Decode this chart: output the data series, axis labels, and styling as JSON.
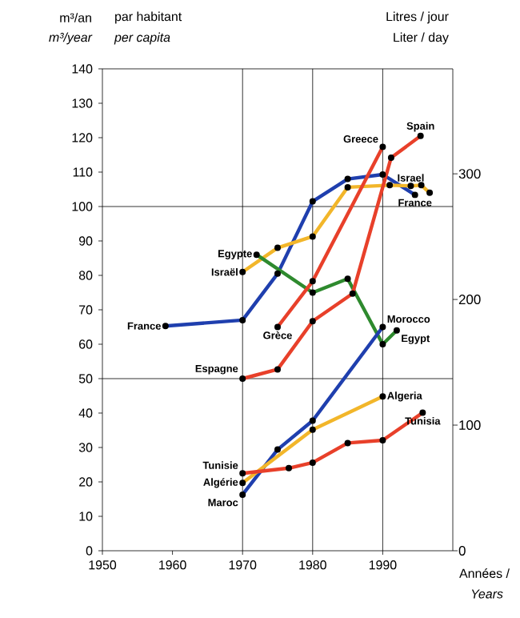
{
  "chart_data": {
    "type": "line",
    "ylabel": "m³/an",
    "y2label": "Litres / jour",
    "xlabel": "Années /",
    "xlim": [
      1950,
      2000
    ],
    "xticks": [
      1950,
      1960,
      1970,
      1980,
      1990
    ],
    "ylim": [
      0,
      140
    ],
    "yticks": [
      0,
      10,
      20,
      30,
      40,
      50,
      60,
      70,
      80,
      90,
      100,
      110,
      120,
      130,
      140
    ],
    "y2lim": [
      0,
      383.56
    ],
    "y2ticks": [
      0,
      100,
      200,
      300
    ],
    "marker": "circle",
    "grid": false,
    "ref_lines": [
      {
        "axis": "x",
        "value": 1970
      },
      {
        "axis": "x",
        "value": 1980
      },
      {
        "axis": "x",
        "value": 1990
      },
      {
        "axis": "y",
        "value": 50
      },
      {
        "axis": "y",
        "value": 100
      }
    ],
    "series": [
      {
        "color": "#1f3fae",
        "x": [
          1959,
          1970,
          1975,
          1980,
          1985,
          1990,
          1994.6
        ],
        "values": [
          65.3,
          67,
          80.5,
          101.5,
          108,
          109.3,
          103.4
        ]
      },
      {
        "color": "#f2b62a",
        "x": [
          1970,
          1975,
          1980,
          1985,
          1991,
          1994,
          1995.5,
          1996.7
        ],
        "values": [
          81,
          88,
          91.3,
          105.6,
          106.2,
          106,
          106.2,
          104
        ]
      },
      {
        "color": "#2e8a2e",
        "x": [
          1972,
          1980,
          1985,
          1990,
          1992
        ],
        "values": [
          86,
          75,
          79,
          60,
          64
        ]
      },
      {
        "color": "#e8402a",
        "x": [
          1975,
          1980,
          1990
        ],
        "values": [
          65,
          78.3,
          117.3
        ]
      },
      {
        "color": "#e8402a",
        "x": [
          1970,
          1975,
          1980,
          1985.7,
          1991.2,
          1995.4
        ],
        "values": [
          50,
          52.7,
          66.7,
          74.7,
          114.2,
          120.5
        ]
      },
      {
        "color": "#1f3fae",
        "x": [
          1970,
          1975,
          1980,
          1990
        ],
        "values": [
          16.3,
          29.4,
          37.8,
          65
        ]
      },
      {
        "color": "#f2b62a",
        "x": [
          1970,
          1980,
          1990
        ],
        "values": [
          19.7,
          35.2,
          44.8
        ]
      },
      {
        "color": "#e8402a",
        "x": [
          1970,
          1976.6,
          1980,
          1985,
          1990,
          1995.7
        ],
        "values": [
          22.5,
          24,
          25.6,
          31.3,
          32.1,
          40.1
        ]
      }
    ],
    "annotations": [
      {
        "text": "France",
        "x": 1959,
        "y": 65.3
      },
      {
        "text": "Israël",
        "x": 1970,
        "y": 81
      },
      {
        "text": "Egypte",
        "x": 1972,
        "y": 86
      },
      {
        "text": "Grèce",
        "x": 1975,
        "y": 65
      },
      {
        "text": "Espagne",
        "x": 1970,
        "y": 50
      },
      {
        "text": "Tunisie",
        "x": 1970,
        "y": 22.5
      },
      {
        "text": "Algérie",
        "x": 1970,
        "y": 19.7
      },
      {
        "text": "Maroc",
        "x": 1970,
        "y": 16.3
      },
      {
        "text": "Greece",
        "x": 1990,
        "y": 117.3
      },
      {
        "text": "Spain",
        "x": 1995.4,
        "y": 120.5
      },
      {
        "text": "Israel",
        "x": 1994,
        "y": 106
      },
      {
        "text": "France",
        "x": 1994.6,
        "y": 103.4
      },
      {
        "text": "Morocco",
        "x": 1990,
        "y": 65
      },
      {
        "text": "Egypt",
        "x": 1992,
        "y": 64
      },
      {
        "text": "Algeria",
        "x": 1990,
        "y": 44.8
      },
      {
        "text": "Tunisia",
        "x": 1995.7,
        "y": 40.1
      },
      "m³/year",
      "par habitant",
      "per capita",
      "Liter / day",
      "Years"
    ]
  }
}
